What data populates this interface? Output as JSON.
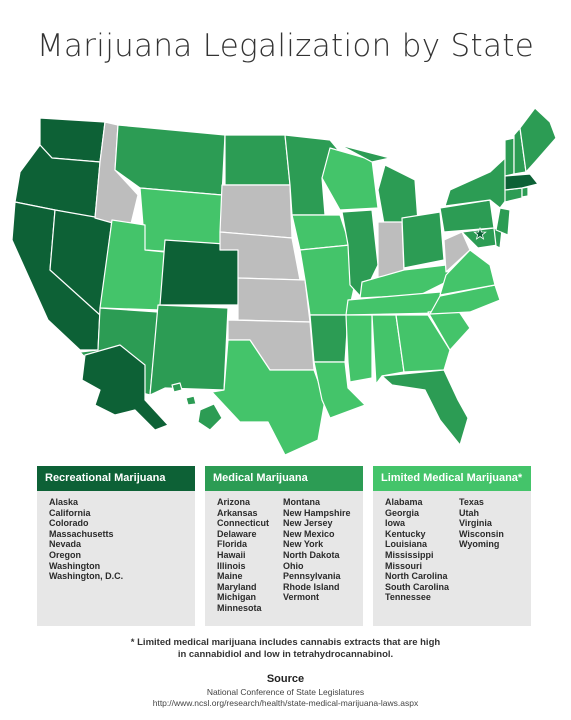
{
  "title": "Marijuana Legalization by State",
  "colors": {
    "recreational": "#0d6136",
    "medical": "#2c9c54",
    "limited": "#44c46a",
    "none": "#bdbdbd",
    "border": "#ffffff"
  },
  "legend": [
    {
      "header": "Recreational Marijuana",
      "category": "recreational",
      "columns": [
        [
          "Alaska",
          "California",
          "Colorado",
          "Massachusetts",
          "Nevada",
          "Oregon",
          "Washington",
          "Washington, D.C."
        ]
      ]
    },
    {
      "header": "Medical Marijuana",
      "category": "medical",
      "columns": [
        [
          "Arizona",
          "Arkansas",
          "Connecticut",
          "Delaware",
          "Florida",
          "Hawaii",
          "Illinois",
          "Maine",
          "Maryland",
          "Michigan",
          "Minnesota"
        ],
        [
          "Montana",
          "New Hampshire",
          "New Jersey",
          "New Mexico",
          "New York",
          "North Dakota",
          "Ohio",
          "Pennsylvania",
          "Rhode Island",
          "Vermont"
        ]
      ]
    },
    {
      "header": "Limited Medical Marijuana*",
      "category": "limited",
      "columns": [
        [
          "Alabama",
          "Georgia",
          "Iowa",
          "Kentucky",
          "Louisiana",
          "Mississippi",
          "Missouri",
          "North Carolina",
          "South Carolina",
          "Tennessee"
        ],
        [
          "Texas",
          "Utah",
          "Virginia",
          "Wisconsin",
          "Wyoming"
        ]
      ]
    }
  ],
  "footnote": {
    "line1": "* Limited medical marijuana includes cannabis extracts that are high",
    "line2": "in cannabidiol and low in tetrahydrocannabinol."
  },
  "source": {
    "title": "Source",
    "org": "National Conference of State Legislatures",
    "url": "http://www.ncsl.org/research/health/state-medical-marijuana-laws.aspx"
  }
}
